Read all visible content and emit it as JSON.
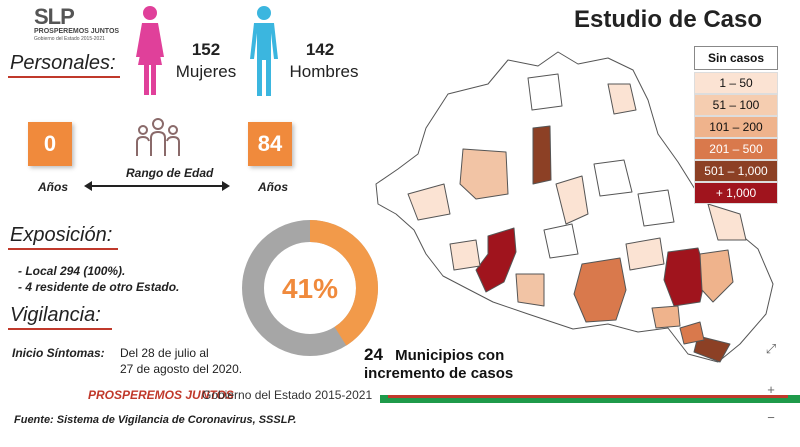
{
  "header": {
    "logo_main": "SLP",
    "logo_tagline": "PROSPEREMOS JUNTOS",
    "logo_sub": "Gobierno del Estado 2015-2021",
    "title": "Estudio de Caso"
  },
  "personales": {
    "heading": "Personales:",
    "female_count": "152",
    "female_label": "Mujeres",
    "male_count": "142",
    "male_label": "Hombres",
    "age_min": "0",
    "age_min_label": "Años",
    "age_range_label": "Rango de Edad",
    "age_max": "84",
    "age_max_label": "Años"
  },
  "exposicion": {
    "heading": "Exposición:",
    "items": [
      "- Local 294 (100%).",
      "- 4 residente de otro Estado."
    ]
  },
  "vigilancia": {
    "heading": "Vigilancia:",
    "inicio_label": "Inicio Síntomas:",
    "inicio_line1": "Del 28 de julio al",
    "inicio_line2": "27 de agosto del 2020."
  },
  "donut": {
    "percent": 41,
    "label": "41%",
    "color_fill": "#f29a4a",
    "color_rest": "#a6a6a6"
  },
  "legend": {
    "heading": "Sin casos",
    "items": [
      {
        "label": "1 – 50",
        "color": "#fbe3d3"
      },
      {
        "label": "51 – 100",
        "color": "#f5cdb0"
      },
      {
        "label": "101 – 200",
        "color": "#efb38c"
      },
      {
        "label": "201 – 500",
        "color": "#d9794c"
      },
      {
        "label": "501 – 1,000",
        "color": "#8c4025"
      },
      {
        "label": "+ 1,000",
        "color": "#a0141d"
      }
    ]
  },
  "municipios": {
    "count": "24",
    "line1": "Municipios con",
    "line2": "incremento de casos"
  },
  "footer": {
    "slogan": "PROSPEREMOS JUNTOS",
    "gov": "Gobierno del Estado 2015-2021",
    "source": "Fuente: Sistema de Vigilancia de Coronavirus, SSSLP."
  },
  "controls": {
    "fit_icon": "expand-icon",
    "zoom_in": "+",
    "zoom_out": "−"
  }
}
